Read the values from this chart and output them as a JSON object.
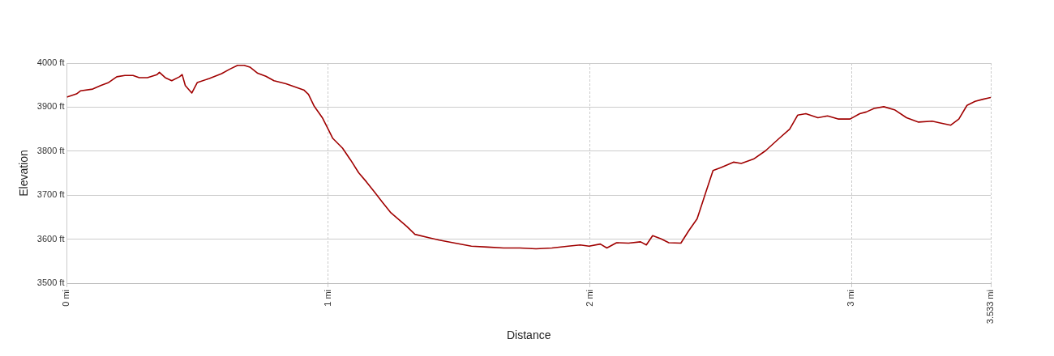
{
  "chart_data": {
    "type": "line",
    "xlabel": "Distance",
    "ylabel": "Elevation",
    "xlim": [
      0,
      3.533
    ],
    "ylim": [
      3500,
      4000
    ],
    "xticks": [
      {
        "value": 0,
        "label": "0 mi"
      },
      {
        "value": 1,
        "label": "1 mi"
      },
      {
        "value": 2,
        "label": "2 mi"
      },
      {
        "value": 3,
        "label": "3 mi"
      },
      {
        "value": 3.533,
        "label": "3.533 mi"
      }
    ],
    "yticks": [
      {
        "value": 3500,
        "label": "3500 ft"
      },
      {
        "value": 3600,
        "label": "3600 ft"
      },
      {
        "value": 3700,
        "label": "3700 ft"
      },
      {
        "value": 3800,
        "label": "3800 ft"
      },
      {
        "value": 3900,
        "label": "3900 ft"
      },
      {
        "value": 4000,
        "label": "4000 ft"
      }
    ],
    "grid": true,
    "legend": false,
    "marker": "none",
    "line_style": "solid",
    "x": [
      0,
      0.037,
      0.052,
      0.099,
      0.129,
      0.16,
      0.191,
      0.222,
      0.253,
      0.277,
      0.308,
      0.345,
      0.354,
      0.376,
      0.401,
      0.431,
      0.441,
      0.453,
      0.478,
      0.499,
      0.545,
      0.592,
      0.622,
      0.653,
      0.678,
      0.7,
      0.73,
      0.761,
      0.792,
      0.838,
      0.906,
      0.924,
      0.946,
      0.977,
      0.995,
      1.017,
      1.054,
      1.085,
      1.116,
      1.146,
      1.177,
      1.208,
      1.239,
      1.3,
      1.331,
      1.387,
      1.424,
      1.485,
      1.547,
      1.609,
      1.67,
      1.732,
      1.794,
      1.855,
      1.917,
      1.963,
      1.997,
      2.04,
      2.065,
      2.102,
      2.148,
      2.194,
      2.216,
      2.24,
      2.271,
      2.302,
      2.348,
      2.379,
      2.41,
      2.441,
      2.471,
      2.502,
      2.549,
      2.579,
      2.626,
      2.672,
      2.724,
      2.764,
      2.795,
      2.826,
      2.872,
      2.909,
      2.949,
      2.995,
      3.032,
      3.057,
      3.087,
      3.124,
      3.165,
      3.211,
      3.257,
      3.309,
      3.34,
      3.38,
      3.411,
      3.442,
      3.473,
      3.504,
      3.533
    ],
    "series": [
      {
        "color": "#a00000",
        "values": [
          3923,
          3930,
          3937,
          3941,
          3949,
          3956,
          3969,
          3972,
          3972,
          3967,
          3967,
          3974,
          3979,
          3967,
          3960,
          3969,
          3974,
          3949,
          3932,
          3956,
          3965,
          3976,
          3986,
          3995,
          3995,
          3991,
          3977,
          3970,
          3960,
          3953,
          3939,
          3929,
          3902,
          3876,
          3855,
          3829,
          3807,
          3780,
          3751,
          3730,
          3707,
          3683,
          3660,
          3629,
          3611,
          3603,
          3598,
          3591,
          3584,
          3582,
          3580,
          3580,
          3578,
          3580,
          3584,
          3587,
          3584,
          3589,
          3580,
          3592,
          3591,
          3594,
          3587,
          3608,
          3601,
          3592,
          3591,
          3620,
          3646,
          3702,
          3756,
          3763,
          3775,
          3772,
          3782,
          3801,
          3829,
          3850,
          3882,
          3885,
          3876,
          3880,
          3873,
          3873,
          3885,
          3889,
          3897,
          3901,
          3894,
          3876,
          3866,
          3868,
          3864,
          3859,
          3873,
          3904,
          3913,
          3918,
          3922
        ]
      }
    ]
  }
}
